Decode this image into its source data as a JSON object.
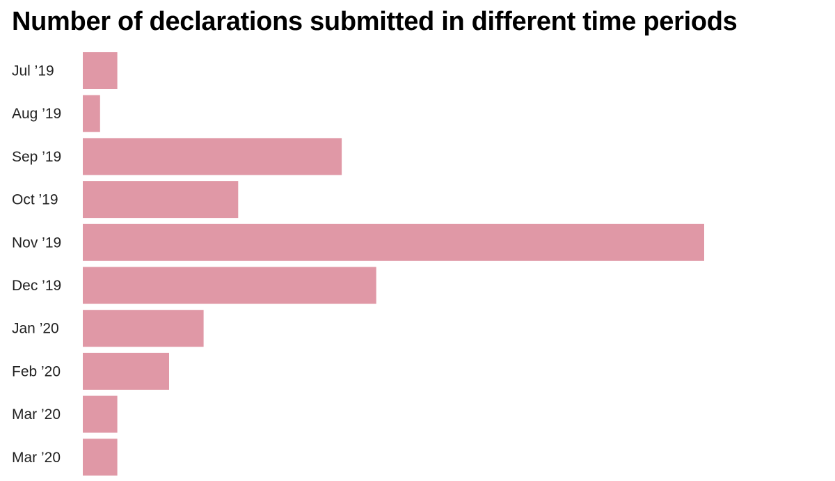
{
  "chart_data": {
    "type": "bar",
    "orientation": "horizontal",
    "title": "Number of declarations submitted in different time periods",
    "xlabel": "",
    "ylabel": "",
    "categories": [
      "Jul ’19",
      "Aug ’19",
      "Sep ’19",
      "Oct ’19",
      "Nov ’19",
      "Dec ’19",
      "Jan ’20",
      "Feb ’20",
      "Mar ’20",
      "Mar ’20"
    ],
    "values": [
      2,
      1,
      15,
      9,
      36,
      17,
      7,
      5,
      2,
      2
    ],
    "xlim": [
      0,
      36
    ],
    "grid": false,
    "legend": "none",
    "bar_color": "#e098a6"
  }
}
